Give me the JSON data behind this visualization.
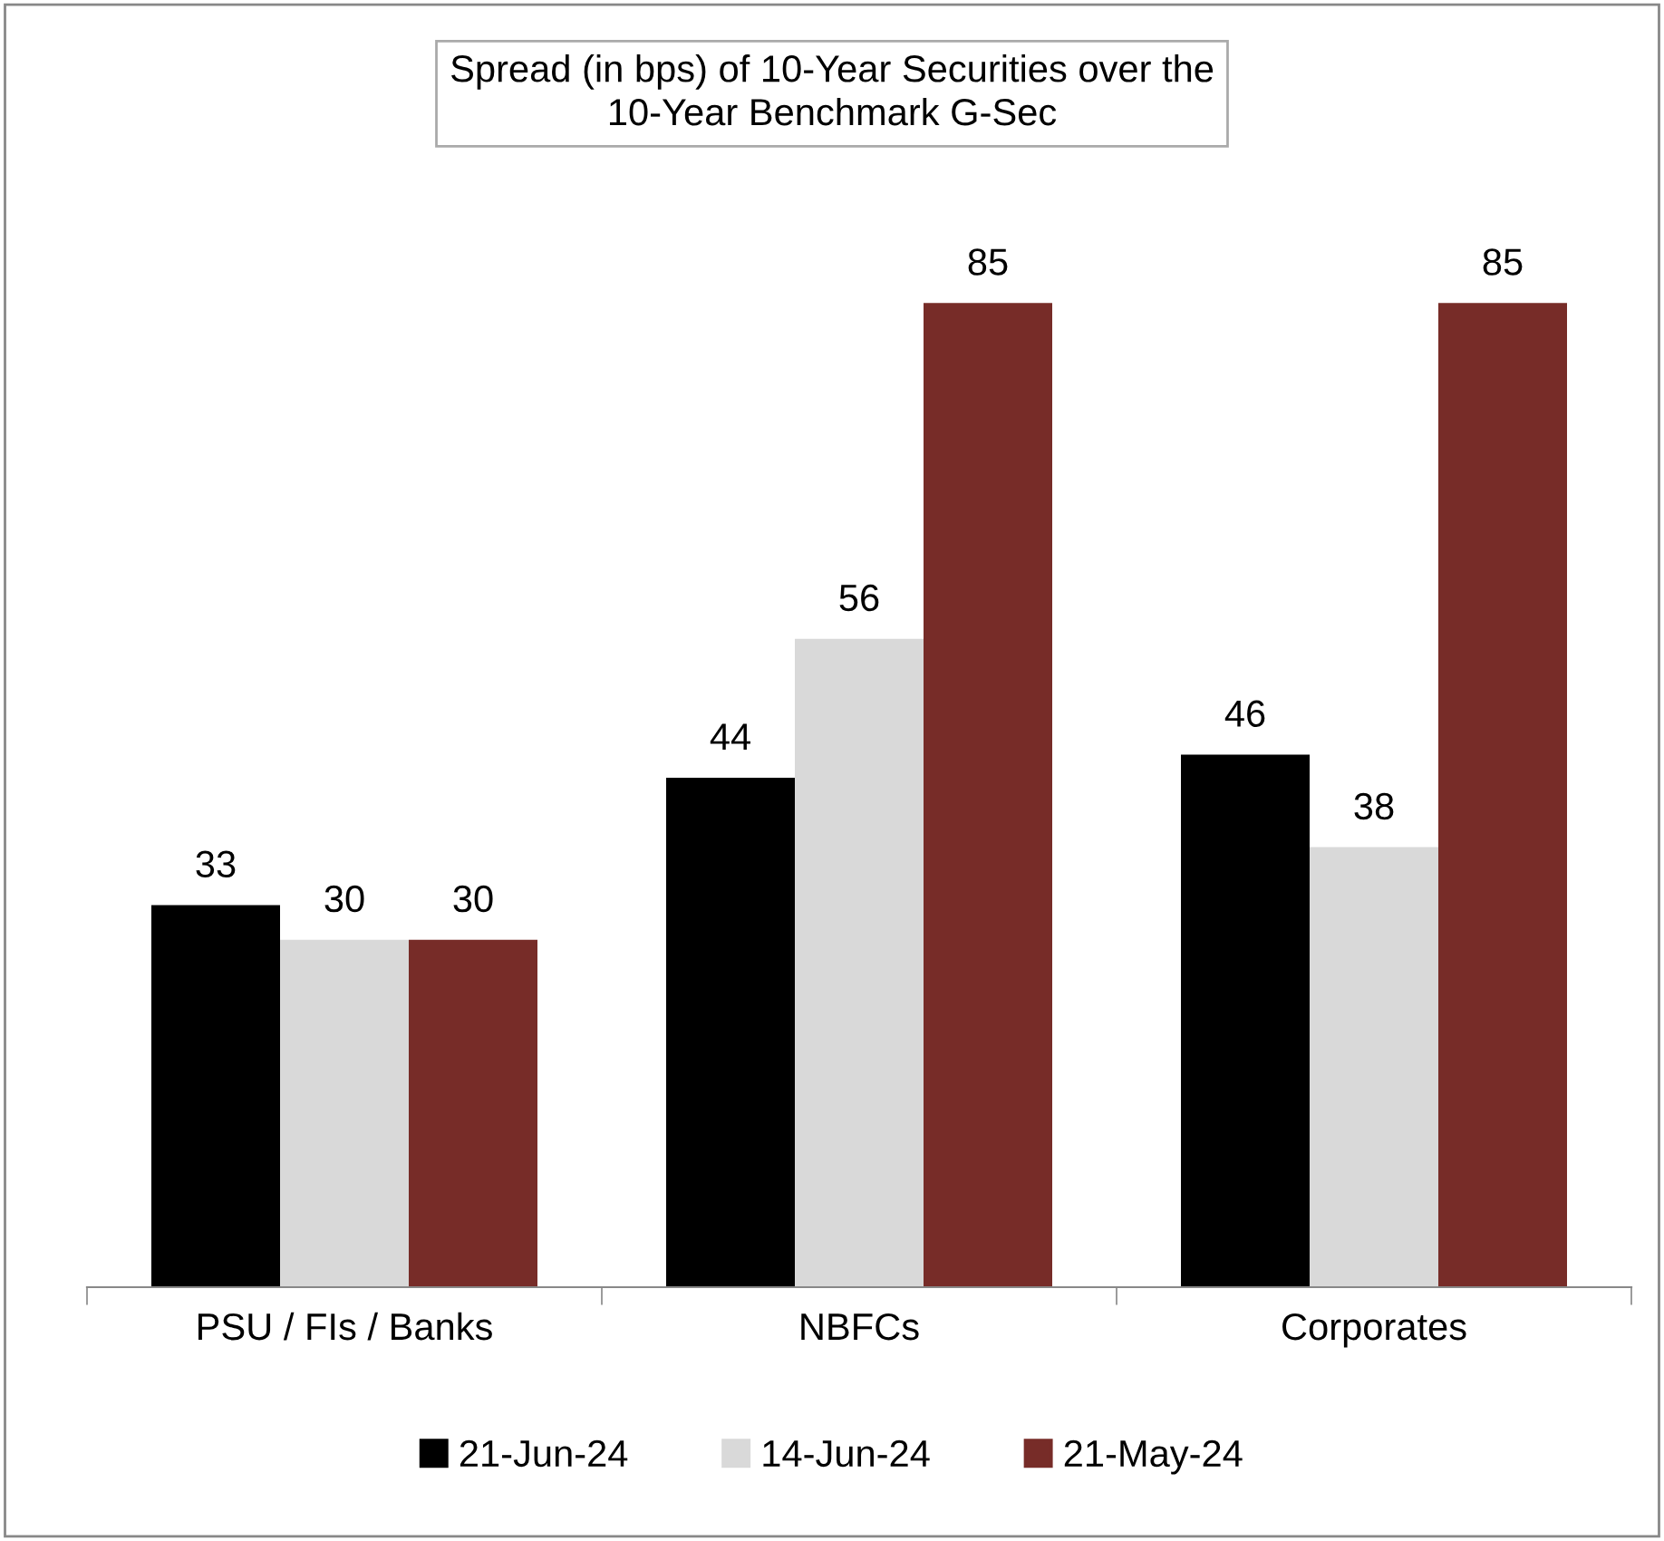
{
  "chart_data": {
    "type": "bar",
    "title": "Spread (in bps) of 10-Year Securities over the\n10-Year Benchmark G-Sec",
    "categories": [
      "PSU / FIs / Banks",
      "NBFCs",
      "Corporates"
    ],
    "series": [
      {
        "name": "21-Jun-24",
        "color": "#000000",
        "values": [
          33,
          44,
          46
        ]
      },
      {
        "name": "14-Jun-24",
        "color": "#d9d9d9",
        "values": [
          30,
          56,
          38
        ]
      },
      {
        "name": "21-May-24",
        "color": "#772c28",
        "values": [
          30,
          85,
          85
        ]
      }
    ],
    "data_labels": true,
    "grid": false,
    "legend": "bottom",
    "tick_labels": "x"
  }
}
